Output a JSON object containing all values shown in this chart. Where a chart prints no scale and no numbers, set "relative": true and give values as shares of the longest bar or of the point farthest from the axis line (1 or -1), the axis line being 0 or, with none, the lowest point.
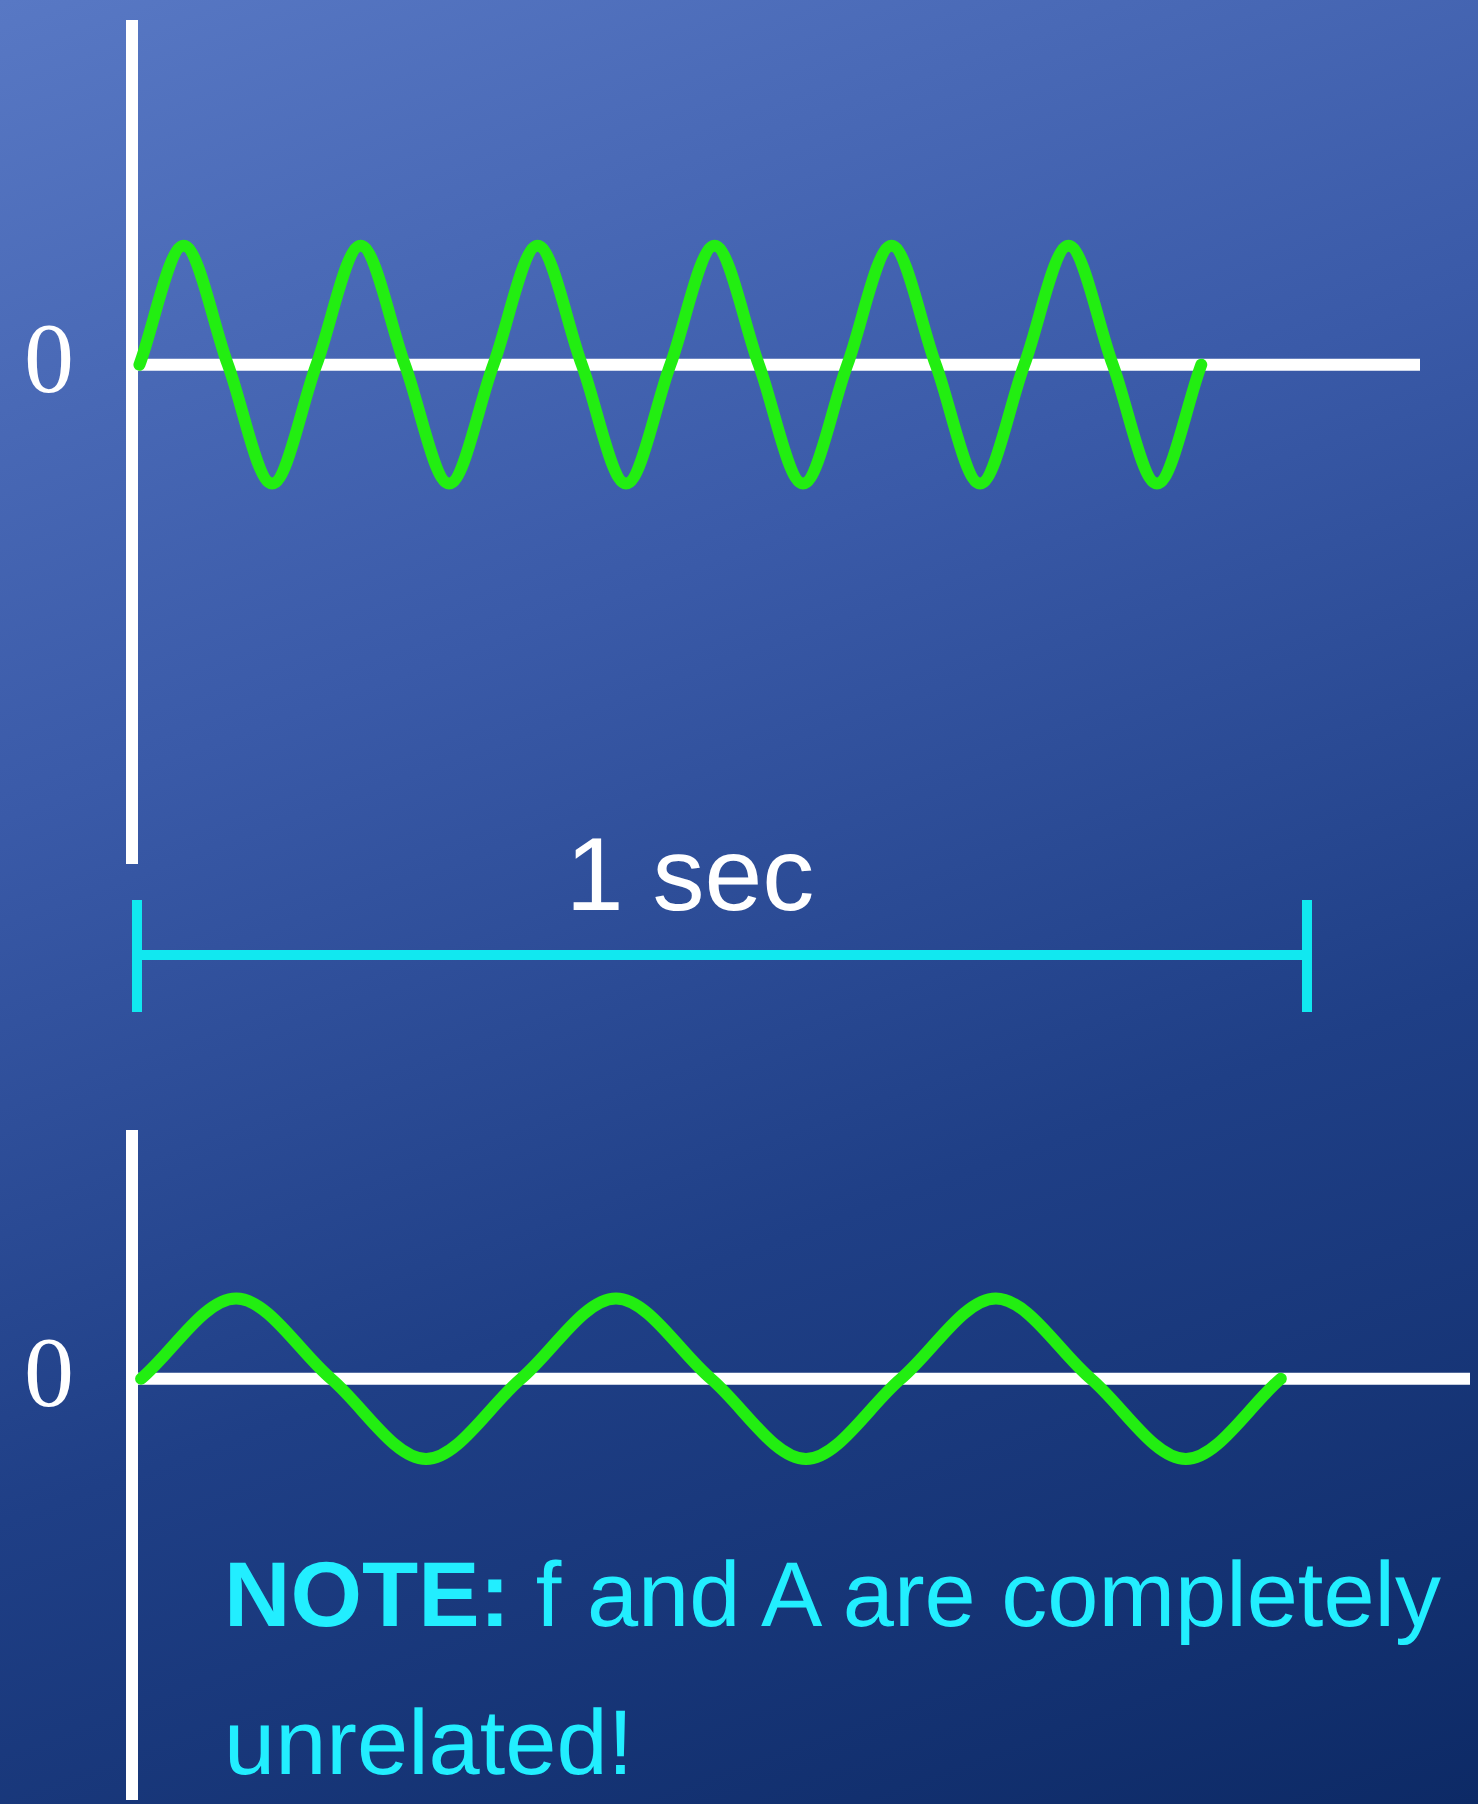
{
  "chart_data": [
    {
      "type": "line",
      "relative": true,
      "marker": "none",
      "color": "#22ee11",
      "categories": [
        null,
        null,
        null,
        null,
        null,
        null,
        null,
        null,
        null,
        null,
        null,
        null,
        null,
        null,
        null,
        null,
        null,
        null,
        null,
        null,
        null,
        null,
        null,
        null,
        null
      ],
      "values": [
        0,
        1,
        0,
        -1,
        0,
        1,
        0,
        -1,
        0,
        1,
        0,
        -1,
        0,
        1,
        0,
        -1,
        0,
        1,
        0,
        -1,
        0,
        1,
        0,
        -1,
        0
      ],
      "annotations": [
        "0",
        "1 sec"
      ]
    },
    {
      "type": "line",
      "relative": true,
      "marker": "none",
      "color": "#22ee11",
      "categories": [
        null,
        null,
        null,
        null,
        null,
        null,
        null,
        null,
        null,
        null,
        null,
        null,
        null
      ],
      "values": [
        0,
        1,
        0,
        -1,
        0,
        1,
        0,
        -1,
        0,
        1,
        0,
        -1,
        0
      ],
      "annotations": [
        "0",
        "NOTE: f and A are completely unrelated!"
      ]
    }
  ]
}
